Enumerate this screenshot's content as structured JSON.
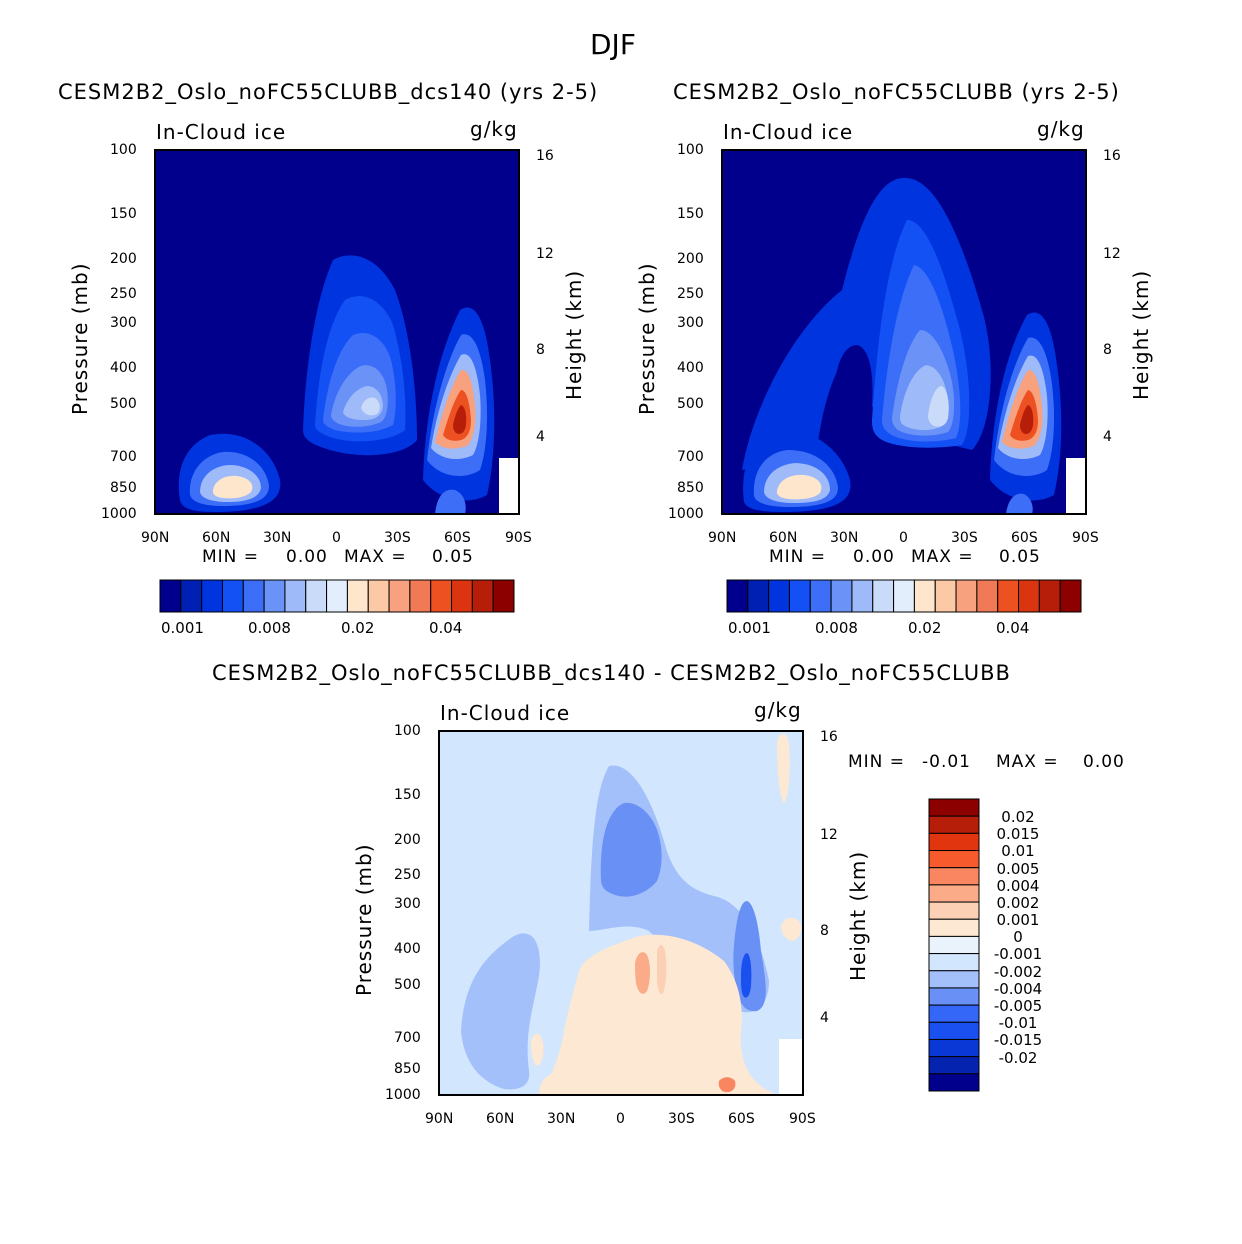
{
  "page_title": "DJF",
  "colors": {
    "abs_scale": [
      "#00008c",
      "#0020b4",
      "#0034de",
      "#1451f5",
      "#3c6ef8",
      "#6b93f7",
      "#9fbaf8",
      "#c9dbf9",
      "#e2eefb",
      "#fde6cc",
      "#fbc9a5",
      "#f7a17e",
      "#f17a56",
      "#ed5121",
      "#db3410",
      "#b61e0a",
      "#8c0000"
    ],
    "diff_scale": [
      "#00008c",
      "#0424b0",
      "#0a38d6",
      "#1a4ff0",
      "#3466f8",
      "#6890f5",
      "#a4c0fb",
      "#d2e6fd",
      "#eaf2fb",
      "#fde8d4",
      "#fcd0b5",
      "#fbab88",
      "#f98660",
      "#f75b2d",
      "#e0350e",
      "#b61e0a",
      "#8c0000"
    ]
  },
  "chart_data": [
    {
      "type": "heatmap",
      "panel": "top-left",
      "title": "CESM2B2_Oslo_noFC55CLUBB_dcs140 (yrs 2-5)",
      "field_label": "In-Cloud ice",
      "units": "g/kg",
      "ylabel": "Pressure (mb)",
      "y2label": "Height (km)",
      "x_ticks": [
        "90N",
        "60N",
        "30N",
        "0",
        "30S",
        "60S",
        "90S"
      ],
      "y_ticks": [
        "100",
        "150",
        "200",
        "250",
        "300",
        "400",
        "500",
        "700",
        "850",
        "1000"
      ],
      "y2_ticks": [
        "16",
        "12",
        "8",
        "4"
      ],
      "min_label": "MIN =",
      "min_value": "0.00",
      "max_label": "MAX =",
      "max_value": "0.05",
      "colorbar_labels": [
        "0.001",
        "0.008",
        "0.02",
        "0.04"
      ]
    },
    {
      "type": "heatmap",
      "panel": "top-right",
      "title": "CESM2B2_Oslo_noFC55CLUBB (yrs 2-5)",
      "field_label": "In-Cloud ice",
      "units": "g/kg",
      "ylabel": "Pressure (mb)",
      "y2label": "Height (km)",
      "x_ticks": [
        "90N",
        "60N",
        "30N",
        "0",
        "30S",
        "60S",
        "90S"
      ],
      "y_ticks": [
        "100",
        "150",
        "200",
        "250",
        "300",
        "400",
        "500",
        "700",
        "850",
        "1000"
      ],
      "y2_ticks": [
        "16",
        "12",
        "8",
        "4"
      ],
      "min_label": "MIN =",
      "min_value": "0.00",
      "max_label": "MAX =",
      "max_value": "0.05",
      "colorbar_labels": [
        "0.001",
        "0.008",
        "0.02",
        "0.04"
      ]
    },
    {
      "type": "heatmap",
      "panel": "bottom",
      "title": "CESM2B2_Oslo_noFC55CLUBB_dcs140 - CESM2B2_Oslo_noFC55CLUBB",
      "field_label": "In-Cloud ice",
      "units": "g/kg",
      "ylabel": "Pressure (mb)",
      "y2label": "Height (km)",
      "x_ticks": [
        "90N",
        "60N",
        "30N",
        "0",
        "30S",
        "60S",
        "90S"
      ],
      "y_ticks": [
        "100",
        "150",
        "200",
        "250",
        "300",
        "400",
        "500",
        "700",
        "850",
        "1000"
      ],
      "y2_ticks": [
        "16",
        "12",
        "8",
        "4"
      ],
      "min_label": "MIN =",
      "min_value": "-0.01",
      "max_label": "MAX =",
      "max_value": "0.00",
      "colorbar_labels": [
        "0.02",
        "0.015",
        "0.01",
        "0.005",
        "0.004",
        "0.002",
        "0.001",
        "0",
        "-0.001",
        "-0.002",
        "-0.004",
        "-0.005",
        "-0.01",
        "-0.015",
        "-0.02"
      ]
    }
  ]
}
